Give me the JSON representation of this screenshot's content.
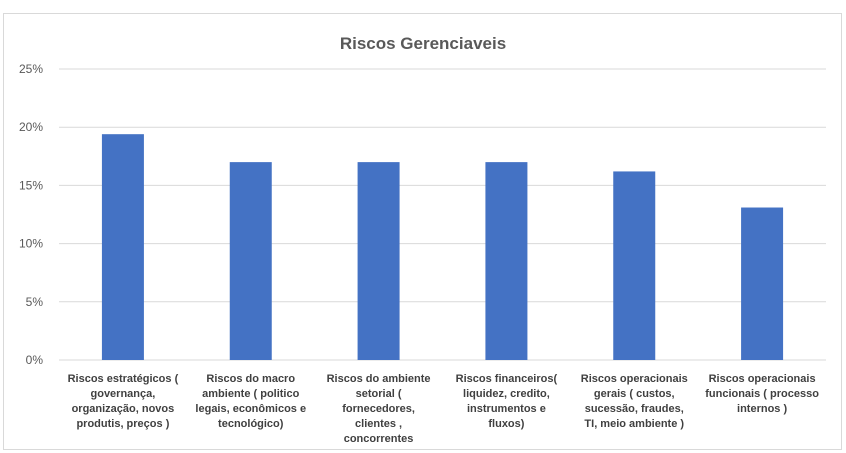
{
  "chart_data": {
    "type": "bar",
    "title": "Riscos Gerenciaveis",
    "xlabel": "",
    "ylabel": "",
    "ylim": [
      0,
      25
    ],
    "yticks": [
      "0%",
      "5%",
      "10%",
      "15%",
      "20%",
      "25%"
    ],
    "grid": true,
    "legend": "none",
    "bar_color": "#4472c4",
    "categories": [
      [
        "Riscos estratégicos (",
        "governança,",
        "organização, novos",
        "produtis, preços )"
      ],
      [
        "Riscos do macro",
        "ambiente ( politico",
        "legais, econômicos e",
        "tecnológico)"
      ],
      [
        "Riscos do ambiente",
        "setorial (",
        "fornecedores,",
        "clientes ,",
        "concorrentes"
      ],
      [
        "Riscos financeiros(",
        "liquidez, credito,",
        "instrumentos e",
        "fluxos)"
      ],
      [
        "Riscos operacionais",
        "gerais ( custos,",
        "sucessão, fraudes,",
        "TI, meio ambiente )"
      ],
      [
        "Riscos operacionais",
        "funcionais ( processo",
        "internos )"
      ]
    ],
    "values": [
      19.4,
      17.0,
      17.0,
      17.0,
      16.2,
      13.1
    ]
  }
}
